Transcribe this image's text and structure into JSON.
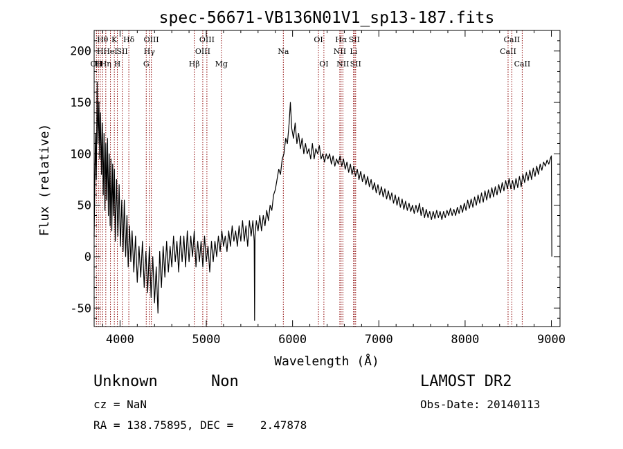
{
  "chart_data": {
    "type": "line",
    "title": "spec-56671-VB136N01V1_sp13-187.fits",
    "xlabel": "Wavelength (Å)",
    "ylabel": "Flux (relative)",
    "xlim": [
      3700,
      9100
    ],
    "ylim": [
      -68,
      220
    ],
    "xticks": [
      4000,
      5000,
      6000,
      7000,
      8000,
      9000
    ],
    "yticks": [
      -50,
      0,
      50,
      100,
      150,
      200
    ],
    "line_color": "#000000",
    "marker_color": "#8b0000",
    "series": [
      {
        "values": [
          [
            3700,
            20
          ],
          [
            3715,
            120
          ],
          [
            3725,
            75
          ],
          [
            3735,
            170
          ],
          [
            3745,
            110
          ],
          [
            3755,
            150
          ],
          [
            3765,
            95
          ],
          [
            3775,
            140
          ],
          [
            3785,
            80
          ],
          [
            3795,
            130
          ],
          [
            3805,
            60
          ],
          [
            3815,
            120
          ],
          [
            3825,
            45
          ],
          [
            3835,
            110
          ],
          [
            3845,
            55
          ],
          [
            3855,
            115
          ],
          [
            3865,
            40
          ],
          [
            3875,
            100
          ],
          [
            3885,
            30
          ],
          [
            3895,
            95
          ],
          [
            3905,
            25
          ],
          [
            3915,
            90
          ],
          [
            3925,
            40
          ],
          [
            3935,
            85
          ],
          [
            3945,
            15
          ],
          [
            3960,
            75
          ],
          [
            3975,
            20
          ],
          [
            3990,
            70
          ],
          [
            4005,
            10
          ],
          [
            4020,
            55
          ],
          [
            4035,
            5
          ],
          [
            4050,
            55
          ],
          [
            4065,
            0
          ],
          [
            4080,
            40
          ],
          [
            4095,
            -10
          ],
          [
            4110,
            30
          ],
          [
            4125,
            -5
          ],
          [
            4140,
            25
          ],
          [
            4160,
            -15
          ],
          [
            4180,
            20
          ],
          [
            4200,
            -25
          ],
          [
            4220,
            10
          ],
          [
            4240,
            -20
          ],
          [
            4260,
            15
          ],
          [
            4280,
            -30
          ],
          [
            4300,
            5
          ],
          [
            4320,
            -35
          ],
          [
            4340,
            10
          ],
          [
            4360,
            -40
          ],
          [
            4380,
            0
          ],
          [
            4400,
            -45
          ],
          [
            4420,
            -10
          ],
          [
            4440,
            -55
          ],
          [
            4460,
            5
          ],
          [
            4480,
            -30
          ],
          [
            4500,
            10
          ],
          [
            4520,
            -20
          ],
          [
            4540,
            15
          ],
          [
            4560,
            -15
          ],
          [
            4580,
            10
          ],
          [
            4600,
            -10
          ],
          [
            4620,
            20
          ],
          [
            4640,
            -5
          ],
          [
            4660,
            15
          ],
          [
            4680,
            -15
          ],
          [
            4700,
            20
          ],
          [
            4720,
            -5
          ],
          [
            4740,
            20
          ],
          [
            4760,
            -10
          ],
          [
            4780,
            25
          ],
          [
            4800,
            -5
          ],
          [
            4820,
            20
          ],
          [
            4840,
            0
          ],
          [
            4860,
            25
          ],
          [
            4880,
            -10
          ],
          [
            4900,
            15
          ],
          [
            4920,
            -5
          ],
          [
            4940,
            15
          ],
          [
            4960,
            -10
          ],
          [
            4980,
            20
          ],
          [
            5000,
            -5
          ],
          [
            5020,
            10
          ],
          [
            5040,
            -15
          ],
          [
            5060,
            15
          ],
          [
            5080,
            -5
          ],
          [
            5100,
            15
          ],
          [
            5120,
            0
          ],
          [
            5140,
            20
          ],
          [
            5160,
            5
          ],
          [
            5180,
            25
          ],
          [
            5200,
            10
          ],
          [
            5220,
            20
          ],
          [
            5240,
            5
          ],
          [
            5260,
            25
          ],
          [
            5280,
            10
          ],
          [
            5300,
            30
          ],
          [
            5320,
            15
          ],
          [
            5340,
            25
          ],
          [
            5360,
            10
          ],
          [
            5380,
            30
          ],
          [
            5400,
            15
          ],
          [
            5420,
            35
          ],
          [
            5440,
            15
          ],
          [
            5460,
            30
          ],
          [
            5480,
            10
          ],
          [
            5500,
            35
          ],
          [
            5520,
            20
          ],
          [
            5540,
            35
          ],
          [
            5555,
            15
          ],
          [
            5560,
            -62
          ],
          [
            5565,
            20
          ],
          [
            5580,
            35
          ],
          [
            5600,
            25
          ],
          [
            5620,
            40
          ],
          [
            5640,
            25
          ],
          [
            5660,
            40
          ],
          [
            5680,
            30
          ],
          [
            5700,
            45
          ],
          [
            5720,
            35
          ],
          [
            5740,
            50
          ],
          [
            5760,
            45
          ],
          [
            5780,
            60
          ],
          [
            5800,
            65
          ],
          [
            5820,
            75
          ],
          [
            5840,
            85
          ],
          [
            5860,
            80
          ],
          [
            5880,
            95
          ],
          [
            5900,
            100
          ],
          [
            5920,
            115
          ],
          [
            5940,
            110
          ],
          [
            5960,
            130
          ],
          [
            5975,
            150
          ],
          [
            5990,
            125
          ],
          [
            6010,
            115
          ],
          [
            6030,
            130
          ],
          [
            6050,
            110
          ],
          [
            6070,
            120
          ],
          [
            6090,
            105
          ],
          [
            6110,
            115
          ],
          [
            6130,
            100
          ],
          [
            6150,
            110
          ],
          [
            6170,
            100
          ],
          [
            6190,
            105
          ],
          [
            6210,
            95
          ],
          [
            6230,
            110
          ],
          [
            6250,
            95
          ],
          [
            6270,
            105
          ],
          [
            6290,
            100
          ],
          [
            6310,
            108
          ],
          [
            6330,
            95
          ],
          [
            6350,
            100
          ],
          [
            6370,
            92
          ],
          [
            6390,
            100
          ],
          [
            6410,
            95
          ],
          [
            6430,
            100
          ],
          [
            6450,
            90
          ],
          [
            6470,
            98
          ],
          [
            6490,
            88
          ],
          [
            6510,
            95
          ],
          [
            6530,
            90
          ],
          [
            6550,
            98
          ],
          [
            6570,
            88
          ],
          [
            6590,
            95
          ],
          [
            6610,
            85
          ],
          [
            6630,
            92
          ],
          [
            6650,
            82
          ],
          [
            6670,
            90
          ],
          [
            6690,
            80
          ],
          [
            6710,
            88
          ],
          [
            6730,
            78
          ],
          [
            6750,
            85
          ],
          [
            6770,
            75
          ],
          [
            6790,
            83
          ],
          [
            6810,
            73
          ],
          [
            6830,
            80
          ],
          [
            6850,
            70
          ],
          [
            6870,
            78
          ],
          [
            6890,
            68
          ],
          [
            6910,
            75
          ],
          [
            6930,
            65
          ],
          [
            6950,
            72
          ],
          [
            6970,
            62
          ],
          [
            6990,
            70
          ],
          [
            7010,
            60
          ],
          [
            7030,
            68
          ],
          [
            7050,
            58
          ],
          [
            7070,
            66
          ],
          [
            7090,
            56
          ],
          [
            7110,
            64
          ],
          [
            7130,
            55
          ],
          [
            7150,
            62
          ],
          [
            7170,
            52
          ],
          [
            7190,
            60
          ],
          [
            7210,
            50
          ],
          [
            7230,
            58
          ],
          [
            7250,
            48
          ],
          [
            7270,
            56
          ],
          [
            7290,
            46
          ],
          [
            7310,
            54
          ],
          [
            7330,
            45
          ],
          [
            7350,
            52
          ],
          [
            7370,
            44
          ],
          [
            7390,
            50
          ],
          [
            7410,
            42
          ],
          [
            7430,
            50
          ],
          [
            7450,
            43
          ],
          [
            7470,
            52
          ],
          [
            7490,
            40
          ],
          [
            7510,
            48
          ],
          [
            7530,
            38
          ],
          [
            7550,
            46
          ],
          [
            7570,
            38
          ],
          [
            7590,
            44
          ],
          [
            7610,
            36
          ],
          [
            7630,
            44
          ],
          [
            7650,
            37
          ],
          [
            7670,
            45
          ],
          [
            7690,
            38
          ],
          [
            7710,
            44
          ],
          [
            7730,
            36
          ],
          [
            7750,
            44
          ],
          [
            7770,
            38
          ],
          [
            7790,
            45
          ],
          [
            7810,
            40
          ],
          [
            7830,
            47
          ],
          [
            7850,
            40
          ],
          [
            7870,
            46
          ],
          [
            7890,
            40
          ],
          [
            7910,
            48
          ],
          [
            7930,
            42
          ],
          [
            7950,
            50
          ],
          [
            7970,
            43
          ],
          [
            7990,
            52
          ],
          [
            8010,
            45
          ],
          [
            8030,
            55
          ],
          [
            8050,
            47
          ],
          [
            8070,
            56
          ],
          [
            8090,
            48
          ],
          [
            8110,
            58
          ],
          [
            8130,
            50
          ],
          [
            8150,
            60
          ],
          [
            8170,
            52
          ],
          [
            8190,
            62
          ],
          [
            8210,
            53
          ],
          [
            8230,
            64
          ],
          [
            8250,
            55
          ],
          [
            8270,
            65
          ],
          [
            8290,
            57
          ],
          [
            8310,
            67
          ],
          [
            8330,
            58
          ],
          [
            8350,
            68
          ],
          [
            8370,
            60
          ],
          [
            8390,
            70
          ],
          [
            8410,
            62
          ],
          [
            8430,
            72
          ],
          [
            8450,
            64
          ],
          [
            8470,
            74
          ],
          [
            8490,
            66
          ],
          [
            8510,
            76
          ],
          [
            8530,
            66
          ],
          [
            8550,
            74
          ],
          [
            8570,
            65
          ],
          [
            8590,
            76
          ],
          [
            8610,
            67
          ],
          [
            8630,
            78
          ],
          [
            8650,
            68
          ],
          [
            8670,
            80
          ],
          [
            8690,
            72
          ],
          [
            8710,
            82
          ],
          [
            8730,
            74
          ],
          [
            8750,
            84
          ],
          [
            8770,
            75
          ],
          [
            8790,
            86
          ],
          [
            8810,
            78
          ],
          [
            8830,
            88
          ],
          [
            8850,
            80
          ],
          [
            8870,
            90
          ],
          [
            8890,
            84
          ],
          [
            8910,
            92
          ],
          [
            8930,
            88
          ],
          [
            8950,
            94
          ],
          [
            8970,
            90
          ],
          [
            8990,
            96
          ],
          [
            9000,
            98
          ],
          [
            9005,
            0
          ]
        ]
      }
    ],
    "line_markers": [
      {
        "wavelength": 3727,
        "label": "OII",
        "row": 2
      },
      {
        "wavelength": 3750,
        "label": "H",
        "row": 2
      },
      {
        "wavelength": 3771,
        "label": "H",
        "row": 1
      },
      {
        "wavelength": 3798,
        "label": "Hθ",
        "row": 0
      },
      {
        "wavelength": 3835,
        "label": "Hη",
        "row": 2
      },
      {
        "wavelength": 3889,
        "label": "HeI",
        "row": 1
      },
      {
        "wavelength": 3934,
        "label": "K",
        "row": 0
      },
      {
        "wavelength": 3969,
        "label": "H",
        "row": 2
      },
      {
        "wavelength": 4026,
        "label": "SII",
        "row": 1
      },
      {
        "wavelength": 4102,
        "label": "Hδ",
        "row": 0
      },
      {
        "wavelength": 4304,
        "label": "G",
        "row": 2
      },
      {
        "wavelength": 4340,
        "label": "Hγ",
        "row": 1
      },
      {
        "wavelength": 4363,
        "label": "OIII",
        "row": 0
      },
      {
        "wavelength": 4861,
        "label": "Hβ",
        "row": 2
      },
      {
        "wavelength": 4959,
        "label": "OIII",
        "row": 1
      },
      {
        "wavelength": 5007,
        "label": "OIII",
        "row": 0
      },
      {
        "wavelength": 5175,
        "label": "Mg",
        "row": 2
      },
      {
        "wavelength": 5893,
        "label": "Na",
        "row": 1
      },
      {
        "wavelength": 6300,
        "label": "OI",
        "row": 0
      },
      {
        "wavelength": 6363,
        "label": "OI",
        "row": 2
      },
      {
        "wavelength": 6548,
        "label": "NII",
        "row": 1
      },
      {
        "wavelength": 6563,
        "label": "Hα",
        "row": 0
      },
      {
        "wavelength": 6583,
        "label": "NII",
        "row": 2
      },
      {
        "wavelength": 6707,
        "label": "Li",
        "row": 1
      },
      {
        "wavelength": 6716,
        "label": "SII",
        "row": 0
      },
      {
        "wavelength": 6731,
        "label": "SII",
        "row": 2
      },
      {
        "wavelength": 8498,
        "label": "CaII",
        "row": 1
      },
      {
        "wavelength": 8542,
        "label": "CaII",
        "row": 0
      },
      {
        "wavelength": 8662,
        "label": "CaII",
        "row": 2
      }
    ]
  },
  "info": {
    "class": "Unknown",
    "subclass": "Non",
    "survey": "LAMOST DR2",
    "cz": "cz = NaN",
    "obs_date": "Obs-Date: 20140113",
    "radec": "RA = 138.75895, DEC =    2.47878"
  }
}
